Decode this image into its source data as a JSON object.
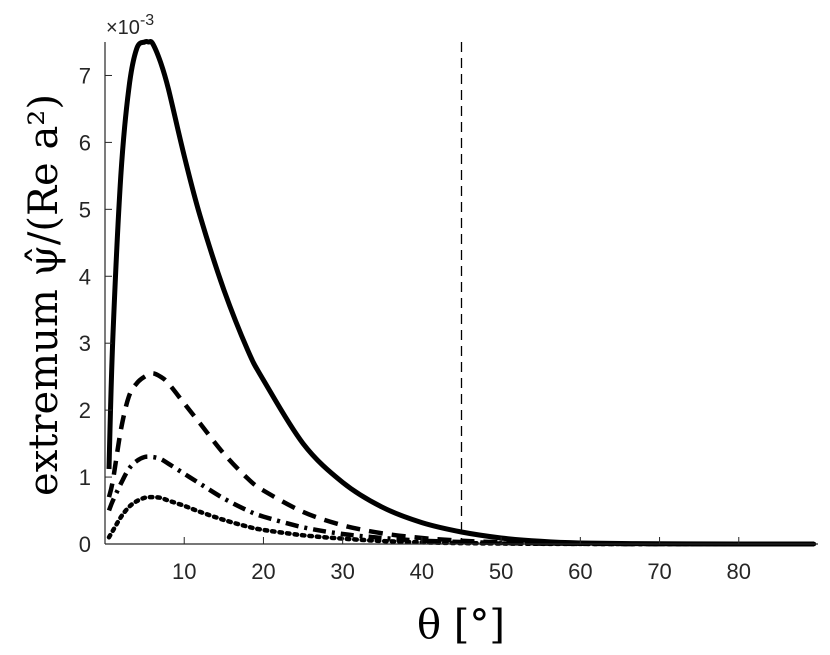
{
  "chart_data": {
    "type": "line",
    "title": "",
    "xlabel": "θ [°]",
    "ylabel": "extremum ψ̂/(Re a²)",
    "y_exponent_label": "×10",
    "y_exponent_power": "-3",
    "xlim": [
      0,
      90
    ],
    "ylim": [
      0,
      0.0075
    ],
    "grid": false,
    "xticks": [
      10,
      20,
      30,
      40,
      50,
      60,
      70,
      80
    ],
    "xtick_labels": [
      "10",
      "20",
      "30",
      "40",
      "50",
      "60",
      "70",
      "80"
    ],
    "yticks": [
      0,
      0.001,
      0.002,
      0.003,
      0.004,
      0.005,
      0.006,
      0.007
    ],
    "ytick_labels": [
      "0",
      "1",
      "2",
      "3",
      "4",
      "5",
      "6",
      "7"
    ],
    "reference_line": {
      "x": 45,
      "style": "dashed"
    },
    "series": [
      {
        "style": "solid",
        "x": [
          0.5,
          1,
          2,
          3,
          4,
          5,
          5.5,
          6,
          7,
          8,
          10,
          12,
          15,
          18,
          20,
          25,
          30,
          35,
          40,
          45,
          50,
          55,
          60,
          70,
          80,
          89.5
        ],
        "y": [
          0.00112,
          0.0031,
          0.0055,
          0.0068,
          0.0074,
          0.0075,
          0.0075,
          0.00748,
          0.0072,
          0.0068,
          0.0058,
          0.0049,
          0.0038,
          0.0029,
          0.00245,
          0.0015,
          0.00092,
          0.00055,
          0.00032,
          0.00018,
          9e-05,
          4e-05,
          1.5e-05,
          3e-06,
          5e-07,
          0.0
        ]
      },
      {
        "style": "dashed",
        "x": [
          0.5,
          1,
          2,
          3,
          4,
          5,
          6,
          7,
          8,
          10,
          12,
          15,
          18,
          20,
          25,
          30,
          35,
          40,
          45,
          50,
          55,
          60,
          70,
          89.5
        ],
        "y": [
          0.0007,
          0.00095,
          0.0017,
          0.0022,
          0.0024,
          0.0025,
          0.00255,
          0.0025,
          0.0024,
          0.0021,
          0.0018,
          0.00135,
          0.00098,
          0.0008,
          0.00048,
          0.00028,
          0.00016,
          9e-05,
          5e-05,
          2.5e-05,
          1e-05,
          4e-06,
          8e-07,
          0.0
        ]
      },
      {
        "style": "dash-dot",
        "x": [
          0.5,
          1,
          2,
          3,
          4,
          5,
          6,
          7,
          8,
          10,
          12,
          15,
          18,
          20,
          25,
          30,
          35,
          40,
          45,
          50,
          55,
          60,
          70,
          89.5
        ],
        "y": [
          0.0005,
          0.00065,
          0.0009,
          0.00112,
          0.00124,
          0.0013,
          0.0013,
          0.00127,
          0.0012,
          0.00105,
          0.0009,
          0.00068,
          0.0005,
          0.00041,
          0.00025,
          0.00015,
          9e-05,
          5e-05,
          3e-05,
          1.5e-05,
          6e-06,
          2e-06,
          4e-07,
          0.0
        ]
      },
      {
        "style": "dotted",
        "x": [
          0.5,
          1,
          2,
          3,
          4,
          5,
          6,
          7,
          8,
          10,
          12,
          15,
          18,
          20,
          25,
          30,
          35,
          40,
          45,
          50,
          55,
          60,
          70,
          89.5
        ],
        "y": [
          0.0001,
          0.0002,
          0.0004,
          0.00055,
          0.00064,
          0.00069,
          0.0007,
          0.00069,
          0.00065,
          0.00057,
          0.00048,
          0.00036,
          0.00026,
          0.00021,
          0.00013,
          8e-05,
          4.5e-05,
          2.5e-05,
          1.4e-05,
          7e-06,
          3e-06,
          1e-06,
          2e-07,
          0.0
        ]
      }
    ]
  }
}
